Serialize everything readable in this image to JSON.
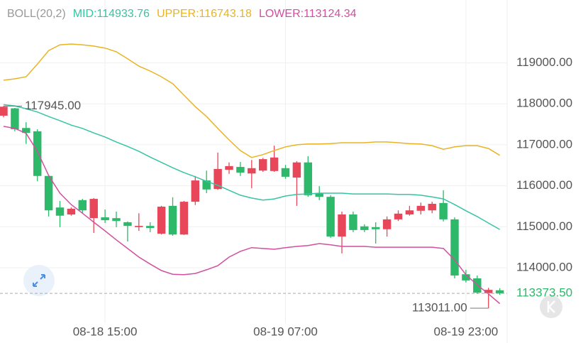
{
  "chart_data": {
    "type": "candlestick",
    "indicator": "BOLL(20,2)",
    "categories": [
      null,
      null,
      null,
      null,
      null,
      null,
      null,
      null,
      null,
      "08-18 15:00",
      null,
      null,
      null,
      null,
      null,
      null,
      null,
      null,
      null,
      null,
      null,
      null,
      null,
      null,
      null,
      "08-19 07:00",
      null,
      null,
      null,
      null,
      null,
      null,
      null,
      null,
      null,
      null,
      null,
      null,
      null,
      null,
      null,
      "08-19 23:00",
      null,
      null,
      null
    ],
    "open": [
      117710,
      117890,
      117410,
      117330,
      116240,
      115470,
      115300,
      115650,
      115210,
      115230,
      115210,
      115110,
      114990,
      115020,
      114830,
      115510,
      114810,
      115610,
      116130,
      115920,
      116390,
      116460,
      116300,
      116370,
      116360,
      116430,
      116200,
      116570,
      115820,
      115730,
      114760,
      115300,
      115010,
      114990,
      114940,
      115180,
      115300,
      115390,
      115400,
      115580,
      115180,
      113840,
      113740,
      113380,
      113450
    ],
    "high": [
      117945,
      117900,
      117550,
      117380,
      116260,
      115630,
      115470,
      115680,
      115700,
      115420,
      115370,
      115130,
      115330,
      115110,
      115510,
      115720,
      115630,
      116240,
      116370,
      116810,
      116570,
      116580,
      116630,
      116680,
      116980,
      116510,
      116600,
      116720,
      115990,
      115770,
      115370,
      115370,
      115060,
      115110,
      115250,
      115400,
      115510,
      115590,
      115610,
      115890,
      115230,
      113950,
      113810,
      113510,
      113500
    ],
    "low": [
      117670,
      117330,
      117020,
      116110,
      115250,
      114990,
      115270,
      115330,
      114850,
      115090,
      114990,
      114640,
      114900,
      114870,
      114810,
      114780,
      114800,
      115530,
      115820,
      115900,
      116290,
      116240,
      115940,
      116340,
      116340,
      116170,
      115510,
      115730,
      115650,
      114730,
      114350,
      114870,
      114870,
      114590,
      114760,
      115140,
      115270,
      115300,
      115330,
      115130,
      113740,
      113640,
      113360,
      113011,
      113340
    ],
    "close": [
      117930,
      117380,
      117290,
      116240,
      115400,
      115270,
      115440,
      115400,
      115680,
      115160,
      115140,
      115020,
      115020,
      114970,
      115490,
      114810,
      115610,
      116130,
      115910,
      116410,
      116480,
      116320,
      116430,
      116650,
      116690,
      116220,
      116570,
      115770,
      115730,
      114760,
      115300,
      114920,
      114920,
      114940,
      115180,
      115320,
      115400,
      115510,
      115560,
      115180,
      113810,
      113690,
      113390,
      113460,
      113373.5
    ],
    "up_color": "#e8475a",
    "down_color": "#2db86a",
    "series": [
      {
        "name": "MID:114933.76",
        "color": "#36c4a4",
        "values": [
          117980,
          117950,
          117880,
          117800,
          117690,
          117590,
          117480,
          117400,
          117290,
          117190,
          117070,
          116960,
          116840,
          116700,
          116570,
          116440,
          116320,
          116220,
          116110,
          116010,
          115890,
          115770,
          115700,
          115650,
          115680,
          115750,
          115790,
          115800,
          115820,
          115820,
          115820,
          115800,
          115800,
          115800,
          115800,
          115790,
          115790,
          115770,
          115730,
          115680,
          115540,
          115390,
          115250,
          115090,
          114933.76
        ]
      },
      {
        "name": "UPPER:116743.18",
        "color": "#e8b424",
        "values": [
          118575,
          118610,
          118660,
          118970,
          119300,
          119440,
          119460,
          119440,
          119410,
          119360,
          119270,
          119100,
          118920,
          118800,
          118660,
          118490,
          118210,
          117930,
          117690,
          117400,
          117120,
          116860,
          116690,
          116760,
          116860,
          116950,
          117000,
          117020,
          117020,
          117030,
          117050,
          117050,
          117050,
          117070,
          117070,
          117050,
          117030,
          117020,
          116980,
          116890,
          116950,
          116980,
          116980,
          116910,
          116743.18
        ]
      },
      {
        "name": "LOWER:113124.34",
        "color": "#d24f9e",
        "values": [
          117450,
          117400,
          117280,
          116840,
          116250,
          115820,
          115540,
          115330,
          115110,
          114900,
          114680,
          114470,
          114260,
          114090,
          113930,
          113840,
          113830,
          113860,
          113950,
          114050,
          114260,
          114400,
          114490,
          114470,
          114450,
          114490,
          114520,
          114540,
          114590,
          114560,
          114520,
          114520,
          114520,
          114500,
          114500,
          114500,
          114500,
          114500,
          114500,
          114470,
          114190,
          113830,
          113580,
          113360,
          113124.34
        ]
      }
    ],
    "ylim": [
      112648,
      120534
    ],
    "yticks": [
      {
        "value": 114000,
        "label": "114000.00"
      },
      {
        "value": 115000,
        "label": "115000.00"
      },
      {
        "value": 116000,
        "label": "116000.00"
      },
      {
        "value": 117000,
        "label": "117000.00"
      },
      {
        "value": 118000,
        "label": "118000.00"
      },
      {
        "value": 119000,
        "label": "119000.00"
      }
    ],
    "last_price": {
      "value": 113373.5,
      "label": "113373.50"
    },
    "high_marker": {
      "value": 117945,
      "label": "117945.00"
    },
    "low_marker": {
      "value": 113011,
      "label": "113011.00"
    },
    "grid": true
  }
}
